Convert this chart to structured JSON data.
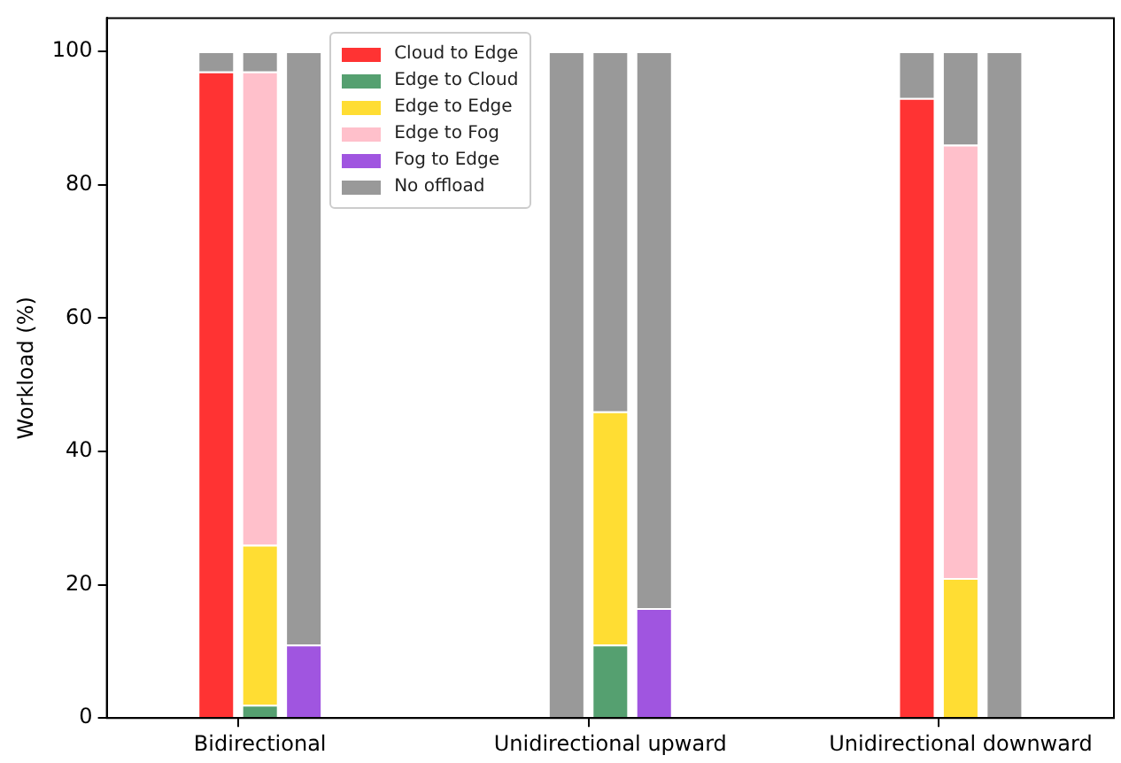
{
  "chart_data": {
    "type": "bar",
    "stacked": true,
    "ylabel": "Workload (%)",
    "ylim": [
      0,
      105
    ],
    "yticks": [
      0,
      20,
      40,
      60,
      80,
      100
    ],
    "grid": false,
    "legend": "top left",
    "categories": [
      null,
      null,
      null,
      "Bidirectional",
      null,
      null,
      null,
      null,
      null,
      null,
      null,
      "Unidirectional upward",
      null,
      null,
      null,
      null,
      null,
      null,
      null,
      "Unidirectional downward",
      null,
      null,
      null
    ],
    "series": [
      {
        "name": "Cloud to Edge",
        "color": "#ff3333",
        "values": [
          null,
          null,
          97,
          null,
          null,
          null,
          null,
          null,
          null,
          null,
          null,
          null,
          null,
          null,
          null,
          null,
          null,
          null,
          93,
          null,
          null,
          null,
          null
        ]
      },
      {
        "name": "Edge to Cloud",
        "color": "#55a070",
        "values": [
          null,
          null,
          null,
          2,
          null,
          null,
          null,
          null,
          null,
          null,
          null,
          11,
          null,
          null,
          null,
          null,
          null,
          null,
          null,
          null,
          null,
          null,
          null
        ]
      },
      {
        "name": "Edge to Edge",
        "color": "#ffdd33",
        "values": [
          null,
          null,
          null,
          24,
          null,
          null,
          null,
          null,
          null,
          null,
          null,
          35,
          null,
          null,
          null,
          null,
          null,
          null,
          null,
          21,
          null,
          null,
          null
        ]
      },
      {
        "name": "Edge to Fog",
        "color": "#ffc0cb",
        "values": [
          null,
          null,
          null,
          71,
          null,
          null,
          null,
          null,
          null,
          null,
          null,
          null,
          null,
          null,
          null,
          null,
          null,
          null,
          null,
          65,
          null,
          null,
          null
        ]
      },
      {
        "name": "Fog to Edge",
        "color": "#a055e0",
        "values": [
          null,
          null,
          null,
          null,
          11,
          null,
          null,
          null,
          null,
          null,
          null,
          null,
          16.5,
          null,
          null,
          null,
          null,
          null,
          null,
          null,
          null,
          null,
          null
        ]
      },
      {
        "name": "No offload",
        "color": "#999999",
        "values": [
          null,
          null,
          3,
          3,
          89,
          null,
          null,
          null,
          null,
          null,
          100,
          54,
          83.5,
          null,
          null,
          null,
          null,
          null,
          7,
          14,
          100,
          null,
          null
        ]
      }
    ]
  }
}
